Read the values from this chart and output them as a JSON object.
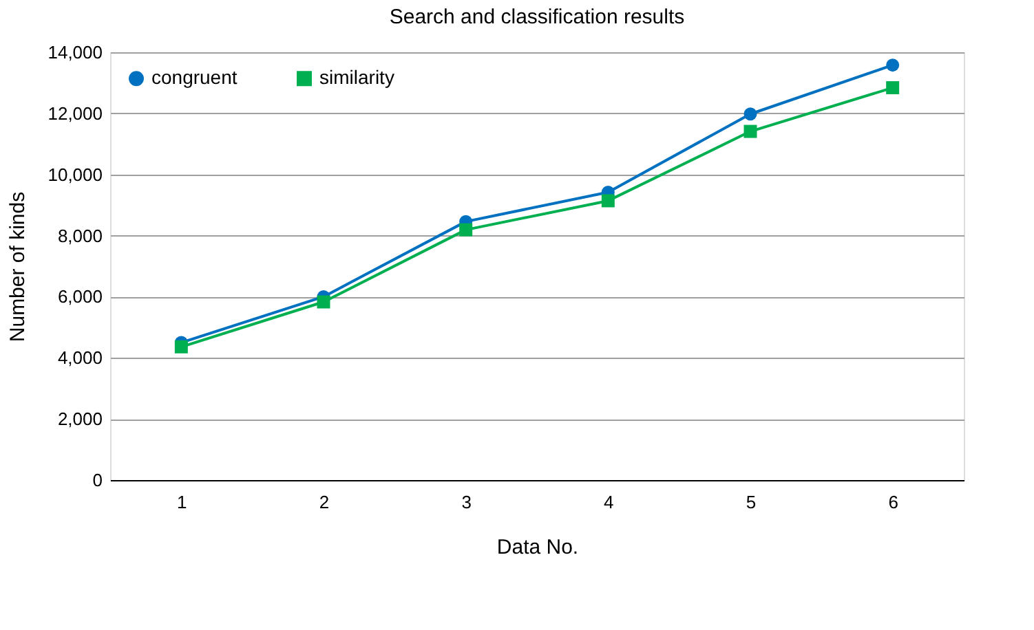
{
  "chart_data": {
    "type": "line",
    "title": "Search and classification results",
    "xlabel": "Data No.",
    "ylabel": "Number of kinds",
    "categories": [
      "1",
      "2",
      "3",
      "4",
      "5",
      "6"
    ],
    "series": [
      {
        "name": "congruent",
        "color": "#0070c0",
        "marker": "circle",
        "values": [
          4500,
          6000,
          8460,
          9420,
          11980,
          13580
        ]
      },
      {
        "name": "similarity",
        "color": "#00b050",
        "marker": "square",
        "values": [
          4360,
          5830,
          8190,
          9140,
          11410,
          12840
        ]
      }
    ],
    "ylim": [
      0,
      14000
    ],
    "yticks": [
      {
        "value": 0,
        "label": "0"
      },
      {
        "value": 2000,
        "label": "2,000"
      },
      {
        "value": 4000,
        "label": "4,000"
      },
      {
        "value": 6000,
        "label": "6,000"
      },
      {
        "value": 8000,
        "label": "8,000"
      },
      {
        "value": 10000,
        "label": "10,000"
      },
      {
        "value": 12000,
        "label": "12,000"
      },
      {
        "value": 14000,
        "label": "14,000"
      }
    ],
    "grid": "y",
    "legend": "top left",
    "line_style": "solid"
  }
}
